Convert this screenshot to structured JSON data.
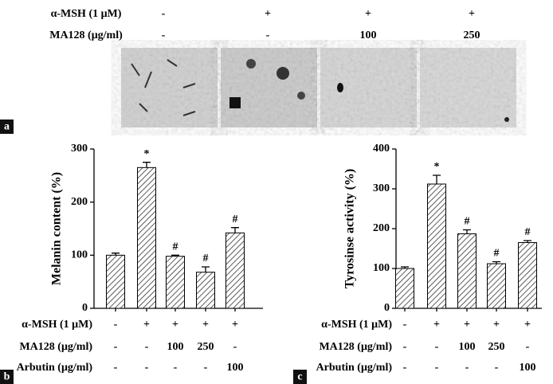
{
  "panel_a": {
    "label": "a",
    "rows": [
      {
        "label": "α-MSH (1 μM)",
        "values": [
          "-",
          "+",
          "+",
          "+"
        ]
      },
      {
        "label": "MA128 (μg/ml)",
        "values": [
          "-",
          "-",
          "100",
          "250"
        ]
      }
    ]
  },
  "chart_data": [
    {
      "type": "bar",
      "panel": "b",
      "y_label": "Melanin content (%)",
      "values": [
        100,
        265,
        98,
        68,
        142
      ],
      "errors": [
        4,
        10,
        2,
        10,
        10
      ],
      "annotations": [
        null,
        "*",
        "#",
        "#",
        "#"
      ],
      "ylim": [
        0,
        300
      ],
      "yticks": [
        0,
        100,
        200,
        300
      ],
      "color": "#000000",
      "conditions": [
        {
          "label": "α-MSH (1 μM)",
          "values": [
            "-",
            "+",
            "+",
            "+",
            "+"
          ]
        },
        {
          "label": "MA128 (μg/ml)",
          "values": [
            "-",
            "-",
            "100",
            "250",
            "-"
          ]
        },
        {
          "label": "Arbutin (μg/ml)",
          "values": [
            "-",
            "-",
            "-",
            "-",
            "100"
          ]
        }
      ]
    },
    {
      "type": "bar",
      "panel": "c",
      "y_label": "Tyrosinse activity (%)",
      "values": [
        100,
        312,
        187,
        112,
        165
      ],
      "errors": [
        4,
        22,
        10,
        5,
        5
      ],
      "annotations": [
        null,
        "*",
        "#",
        "#",
        "#"
      ],
      "ylim": [
        0,
        400
      ],
      "yticks": [
        0,
        100,
        200,
        300,
        400
      ],
      "color": "#000000",
      "conditions": [
        {
          "label": "α-MSH (1 μM)",
          "values": [
            "-",
            "+",
            "+",
            "+",
            "+"
          ]
        },
        {
          "label": "MA128 (μg/ml)",
          "values": [
            "-",
            "-",
            "100",
            "250",
            "-"
          ]
        },
        {
          "label": "Arbutin (μg/ml)",
          "values": [
            "-",
            "-",
            "-",
            "-",
            "100"
          ]
        }
      ]
    }
  ]
}
